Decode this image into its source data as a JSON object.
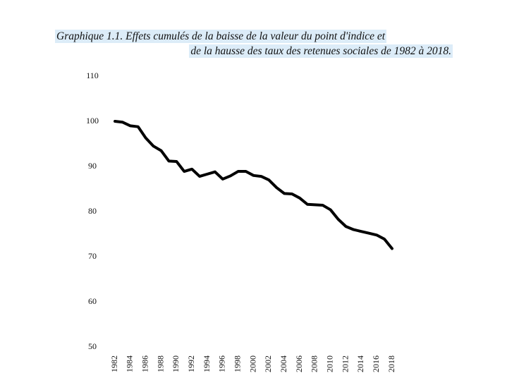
{
  "chart_data": {
    "type": "line",
    "title": [
      "Graphique 1.1. Effets cumulés de la baisse de la valeur du point d'indice et",
      "de la hausse des taux des retenues sociales de 1982 à 2018."
    ],
    "x": [
      1982,
      1983,
      1984,
      1985,
      1986,
      1987,
      1988,
      1989,
      1990,
      1991,
      1992,
      1993,
      1994,
      1995,
      1996,
      1997,
      1998,
      1999,
      2000,
      2001,
      2002,
      2003,
      2004,
      2005,
      2006,
      2007,
      2008,
      2009,
      2010,
      2011,
      2012,
      2013,
      2014,
      2015,
      2016,
      2017,
      2018
    ],
    "values": [
      100,
      99.8,
      99,
      98.8,
      96.3,
      94.5,
      93.5,
      91.2,
      91.1,
      88.9,
      89.4,
      87.8,
      88.3,
      88.8,
      87.2,
      87.9,
      88.9,
      88.9,
      88.0,
      87.8,
      87.0,
      85.3,
      84.0,
      83.9,
      83.0,
      81.6,
      81.5,
      81.4,
      80.4,
      78.3,
      76.7,
      76.0,
      75.6,
      75.2,
      74.8,
      73.9,
      71.8
    ],
    "color": "#000000",
    "xlim": [
      1982,
      2018
    ],
    "xticks": [
      1982,
      1984,
      1986,
      1988,
      1990,
      1992,
      1994,
      1996,
      1998,
      2000,
      2002,
      2004,
      2006,
      2008,
      2010,
      2012,
      2014,
      2016,
      2018
    ],
    "ylim": [
      50,
      110
    ],
    "yticks": [
      50,
      60,
      70,
      80,
      90,
      100,
      110
    ],
    "grid": false
  }
}
